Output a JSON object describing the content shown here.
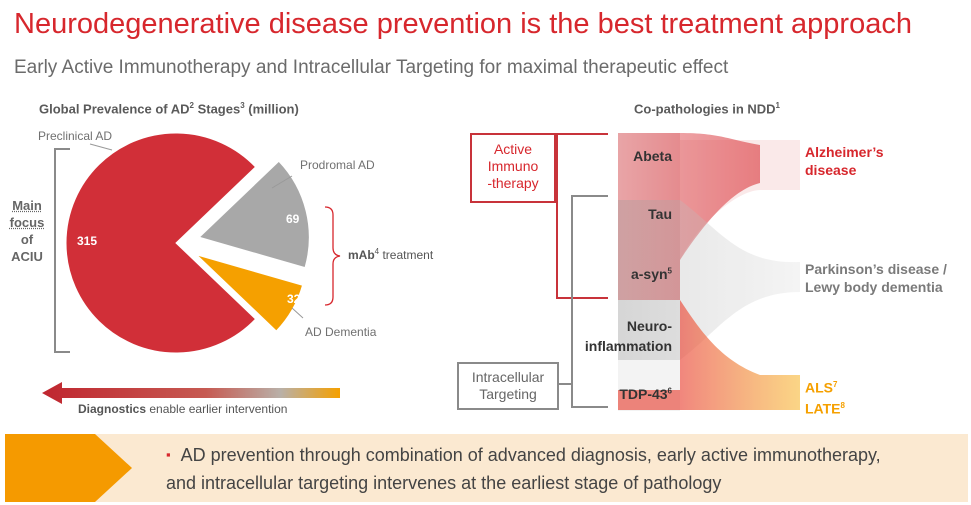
{
  "title": "Neurodegenerative disease prevention is the best treatment approach",
  "subtitle": "Early Active Immunotherapy and Intracellular Targeting for maximal therapeutic effect",
  "left_panel": {
    "heading": "Global Prevalence of AD",
    "heading_sup1": "2",
    "heading_mid": " Stages",
    "heading_sup2": "3",
    "heading_end": " (million)",
    "focus_label": [
      "Main",
      "focus",
      "of",
      "ACIU"
    ],
    "mab_label": "mAb",
    "mab_sup": "4",
    "mab_rest": " treatment",
    "diagnostics_bold": "Diagnostics",
    "diagnostics_rest": " enable earlier intervention"
  },
  "chart_data": {
    "type": "pie",
    "title": "Global Prevalence of AD Stages (million)",
    "labels": [
      "Preclinical AD",
      "Prodromal AD",
      "AD Dementia"
    ],
    "values": [
      315,
      69,
      32
    ],
    "colors": [
      "#d12f38",
      "#a8a8a8",
      "#f5a000"
    ],
    "exploded": [
      false,
      true,
      true
    ]
  },
  "right_panel": {
    "heading": "Co-pathologies in NDD",
    "heading_sup": "1",
    "active_box": [
      "Active",
      "Immuno",
      "-therapy"
    ],
    "intra_box": [
      "Intracellular",
      "Targeting"
    ],
    "pathologies": [
      {
        "label": "Abeta",
        "sup": ""
      },
      {
        "label": "Tau",
        "sup": ""
      },
      {
        "label": "a-syn",
        "sup": "5"
      },
      {
        "label": "Neuro-",
        "sup": ""
      },
      {
        "label": "inflammation",
        "sup": ""
      },
      {
        "label": "TDP-43",
        "sup": "6"
      }
    ],
    "outcomes": {
      "alz_line1": "Alzheimer’s",
      "alz_line2": "disease",
      "pd_line1": "Parkinson’s disease /",
      "pd_line2": "Lewy body dementia",
      "als": "ALS",
      "als_sup": "7",
      "late": "LATE",
      "late_sup": "8"
    },
    "colors": {
      "alz": "#d7272d",
      "pd": "#888888",
      "als": "#f5a000"
    }
  },
  "banner": {
    "bullet": "▪",
    "line1": "AD prevention through combination of advanced diagnosis, early active immunotherapy,",
    "line2": "and intracellular targeting intervenes at the earliest stage of pathology"
  }
}
